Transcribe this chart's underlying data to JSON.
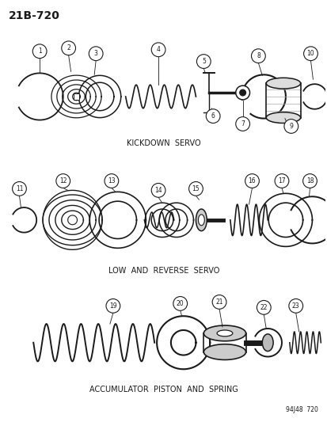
{
  "title": "21B-720",
  "background_color": "#ffffff",
  "line_color": "#1a1a1a",
  "section_labels": {
    "kickdown": "KICKDOWN  SERVO",
    "low_reverse": "LOW  AND  REVERSE  SERVO",
    "accumulator": "ACCUMULATOR  PISTON  AND  SPRING"
  },
  "figsize": [
    4.14,
    5.33
  ],
  "dpi": 100
}
